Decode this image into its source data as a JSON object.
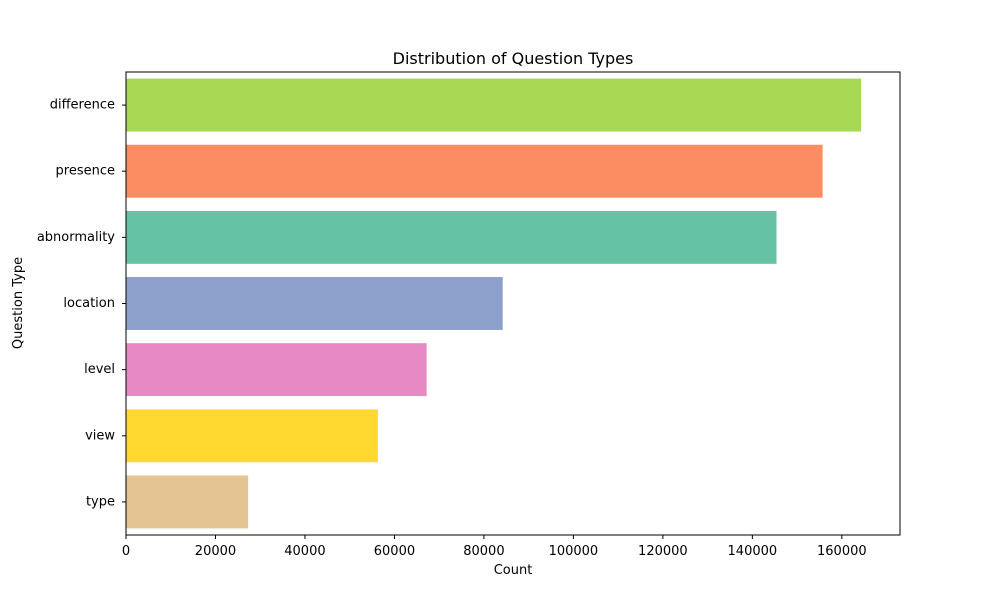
{
  "chart_data": {
    "type": "bar",
    "orientation": "horizontal",
    "title": "Distribution of Question Types",
    "xlabel": "Count",
    "ylabel": "Question Type",
    "categories": [
      "difference",
      "presence",
      "abnormality",
      "location",
      "level",
      "view",
      "type"
    ],
    "values": [
      164300,
      155700,
      145400,
      84200,
      67200,
      56300,
      27300
    ],
    "colors": [
      "#a6d854",
      "#fc8d62",
      "#66c2a5",
      "#8da0cb",
      "#e78ac3",
      "#ffd92f",
      "#e5c494"
    ],
    "xlim": [
      0,
      173000
    ],
    "xticks": [
      0,
      20000,
      40000,
      60000,
      80000,
      100000,
      120000,
      140000,
      160000
    ],
    "xtick_labels": [
      "0",
      "20000",
      "40000",
      "60000",
      "80000",
      "100000",
      "120000",
      "140000",
      "160000"
    ],
    "grid": false,
    "legend": "none"
  }
}
